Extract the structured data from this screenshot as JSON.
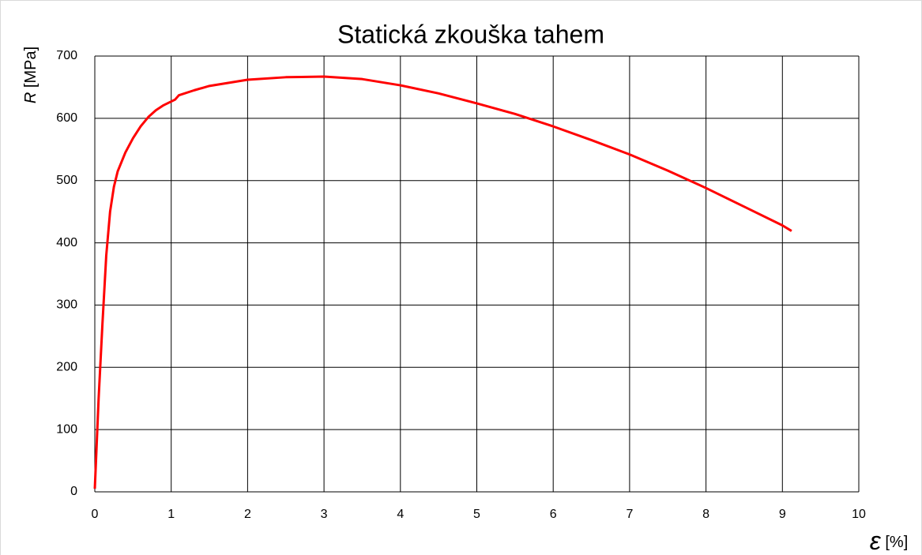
{
  "chart_data": {
    "type": "line",
    "title": "Statická zkouška tahem",
    "ylabel_symbol": "R",
    "ylabel_unit": "[MPa]",
    "xlabel_symbol": "ε",
    "xlabel_unit": "[%]",
    "x": [
      0,
      0.05,
      0.1,
      0.15,
      0.2,
      0.25,
      0.3,
      0.4,
      0.5,
      0.6,
      0.7,
      0.8,
      0.9,
      1.0,
      1.05,
      1.1,
      1.3,
      1.5,
      2,
      2.5,
      3,
      3.5,
      4,
      4.5,
      5,
      5.5,
      6,
      6.5,
      7,
      7.5,
      8,
      8.5,
      9,
      9.12
    ],
    "series": [
      {
        "color": "#ff0000",
        "values": [
          5,
          150,
          270,
          380,
          450,
          490,
          515,
          545,
          568,
          587,
          602,
          613,
          621,
          627,
          630,
          637,
          645,
          652,
          662,
          666,
          667,
          663,
          653,
          640,
          624,
          607,
          587,
          565,
          542,
          516,
          488,
          458,
          428,
          419
        ]
      }
    ],
    "xlim": [
      0,
      10
    ],
    "xticks": [
      0,
      1,
      2,
      3,
      4,
      5,
      6,
      7,
      8,
      9,
      10
    ],
    "ylim": [
      0,
      700
    ],
    "yticks": [
      0,
      100,
      200,
      300,
      400,
      500,
      600,
      700
    ],
    "grid": true
  }
}
